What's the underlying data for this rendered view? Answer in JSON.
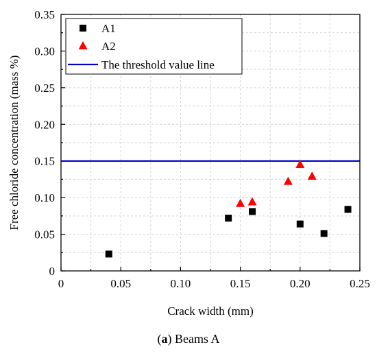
{
  "chart_data": {
    "type": "scatter",
    "xlabel": "Crack width (mm)",
    "ylabel": "Free chloride concentration (mass %)",
    "xlim": [
      0,
      0.25
    ],
    "ylim": [
      0,
      0.35
    ],
    "x_ticks": [
      "0",
      "0.05",
      "0.10",
      "0.15",
      "0.20",
      "0.25"
    ],
    "y_ticks": [
      "0",
      "0.05",
      "0.10",
      "0.15",
      "0.20",
      "0.25",
      "0.30",
      "0.35"
    ],
    "grid": true,
    "legend_position": "top-left",
    "series": [
      {
        "name": "A1",
        "marker": "square",
        "color": "#000000",
        "points": [
          {
            "x": 0.04,
            "y": 0.023
          },
          {
            "x": 0.14,
            "y": 0.072
          },
          {
            "x": 0.16,
            "y": 0.081
          },
          {
            "x": 0.2,
            "y": 0.064
          },
          {
            "x": 0.22,
            "y": 0.051
          },
          {
            "x": 0.24,
            "y": 0.084
          }
        ]
      },
      {
        "name": "A2",
        "marker": "triangle",
        "color": "#ff0000",
        "points": [
          {
            "x": 0.15,
            "y": 0.092
          },
          {
            "x": 0.16,
            "y": 0.094
          },
          {
            "x": 0.19,
            "y": 0.122
          },
          {
            "x": 0.2,
            "y": 0.145
          },
          {
            "x": 0.21,
            "y": 0.129
          }
        ]
      }
    ],
    "lines": [
      {
        "name": "The threshold value line",
        "y": 0.15,
        "color": "#0000cc"
      }
    ]
  },
  "caption": {
    "label": "a",
    "text": " Beams A"
  }
}
